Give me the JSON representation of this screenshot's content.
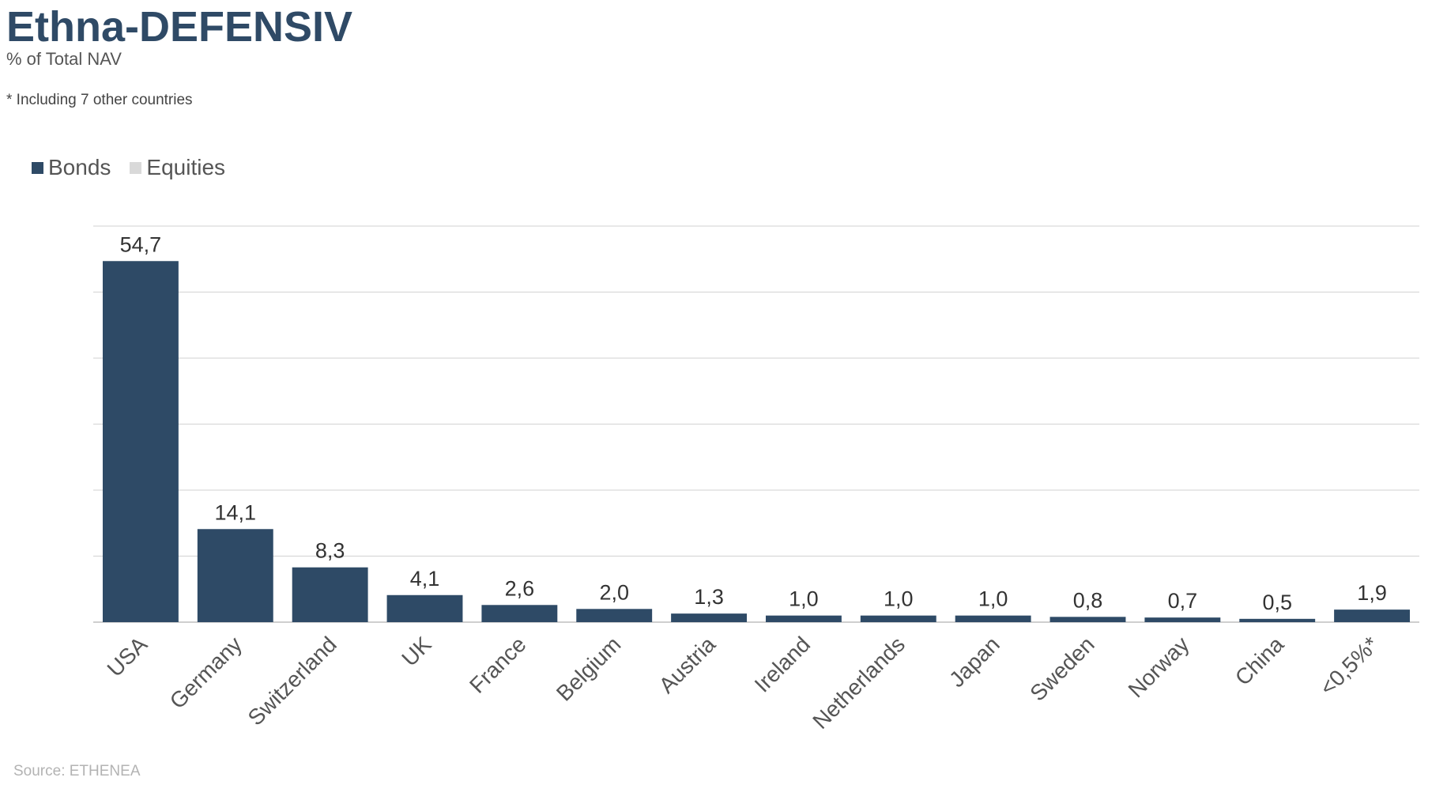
{
  "header": {
    "title": "Ethna-DEFENSIV",
    "subtitle": "% of Total NAV",
    "footnote": "* Including 7 other countries"
  },
  "legend": {
    "items": [
      {
        "label": "Bonds",
        "color": "#2e4a66"
      },
      {
        "label": "Equities",
        "color": "#d9d9d9"
      }
    ]
  },
  "footer": {
    "source": "Source: ETHENEA"
  },
  "chart_data": {
    "type": "bar",
    "categories": [
      "USA",
      "Germany",
      "Switzerland",
      "UK",
      "France",
      "Belgium",
      "Austria",
      "Ireland",
      "Netherlands",
      "Japan",
      "Sweden",
      "Norway",
      "China",
      "<0,5%*"
    ],
    "series": [
      {
        "name": "Bonds",
        "values": [
          54.7,
          14.1,
          8.3,
          4.1,
          2.6,
          2.0,
          1.3,
          1.0,
          1.0,
          1.0,
          0.8,
          0.7,
          0.5,
          1.9
        ],
        "labels": [
          "54,7",
          "14,1",
          "8,3",
          "4,1",
          "2,6",
          "2,0",
          "1,3",
          "1,0",
          "1,0",
          "1,0",
          "0,8",
          "0,7",
          "0,5",
          "1,9"
        ],
        "color": "#2e4a66"
      },
      {
        "name": "Equities",
        "values": [
          0,
          0,
          0,
          0,
          0,
          0,
          0,
          0,
          0,
          0,
          0,
          0,
          0,
          0
        ],
        "color": "#d9d9d9"
      }
    ],
    "ylim": [
      0,
      60
    ],
    "grid": true,
    "legend_position": "top-left",
    "gridline_color": "#d9d9d9",
    "axis_color": "#bfbfbf",
    "label_color": "#333333",
    "tick_label_color": "#555555"
  }
}
